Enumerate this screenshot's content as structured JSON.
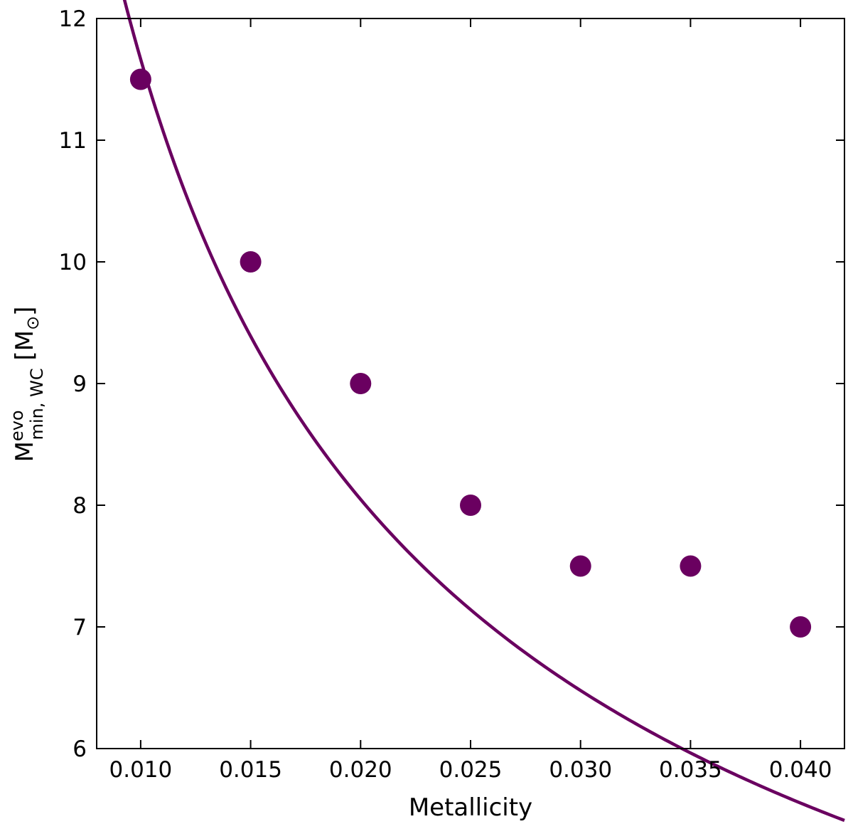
{
  "chart_data": {
    "type": "scatter",
    "xlabel": "Metallicity",
    "ylabel": {
      "base": "M",
      "superscript": "evo",
      "subscript": "min, WC",
      "unit_open": " [M",
      "unit_subscript": "⊙",
      "unit_close": "]"
    },
    "xlim": [
      0.008,
      0.042
    ],
    "ylim": [
      6,
      12
    ],
    "x_ticks": [
      0.01,
      0.015,
      0.02,
      0.025,
      0.03,
      0.035,
      0.04
    ],
    "x_tick_labels": [
      "0.010",
      "0.015",
      "0.020",
      "0.025",
      "0.030",
      "0.035",
      "0.040"
    ],
    "y_ticks": [
      6,
      7,
      8,
      9,
      10,
      11,
      12
    ],
    "y_tick_labels": [
      "6",
      "7",
      "8",
      "9",
      "10",
      "11",
      "12"
    ],
    "grid": false,
    "series": [
      {
        "kind": "points",
        "color": "#6a0060",
        "x": [
          0.01,
          0.015,
          0.02,
          0.025,
          0.03,
          0.035,
          0.04
        ],
        "y": [
          11.5,
          10.0,
          9.0,
          8.0,
          7.5,
          7.5,
          7.0
        ]
      },
      {
        "kind": "fit-curve",
        "color": "#6a0060",
        "model": "power-law",
        "coefficient": 0.9906,
        "exponent": -0.5355,
        "x_range": [
          0.0087,
          0.042
        ]
      }
    ]
  }
}
